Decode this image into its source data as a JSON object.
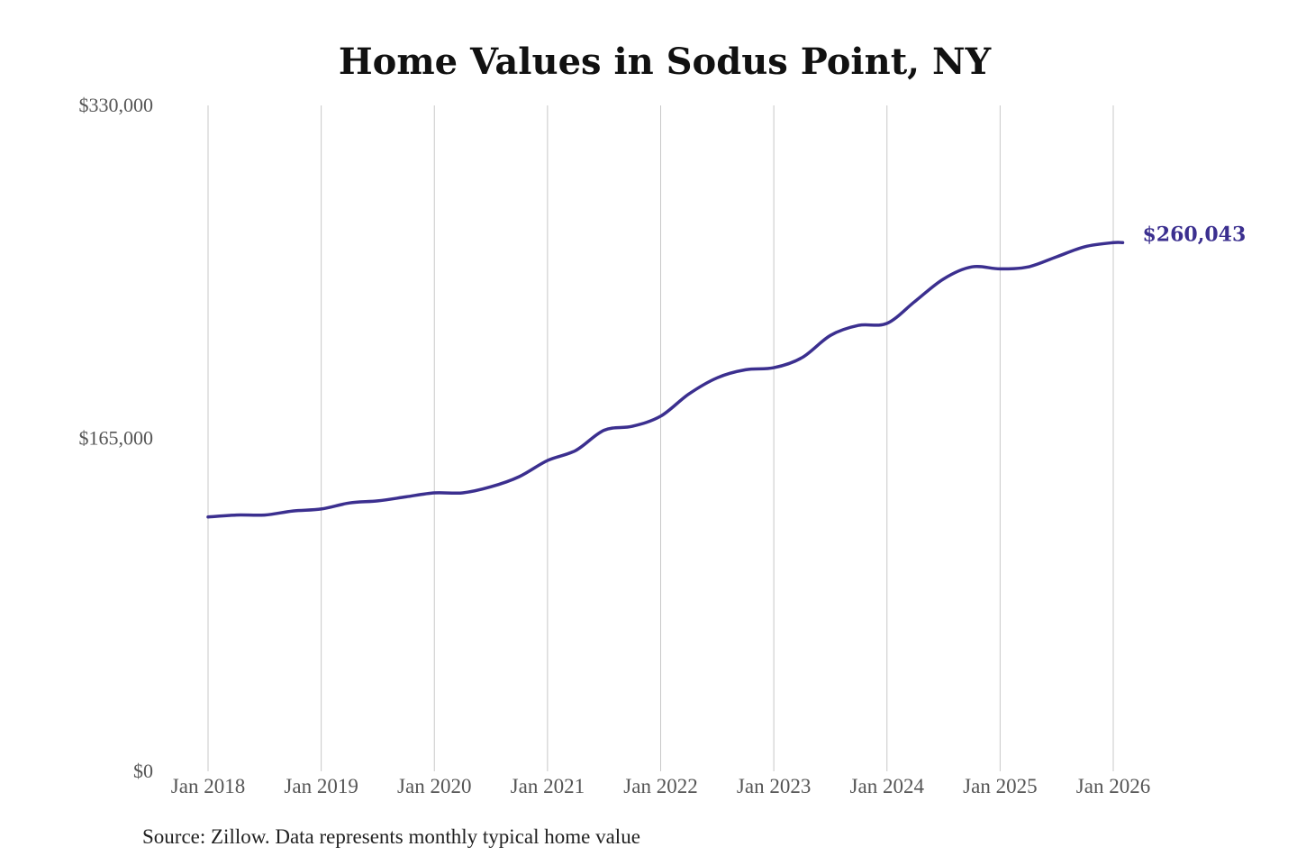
{
  "chart_data": {
    "type": "line",
    "title": "Home Values in Sodus Point, NY",
    "xlabel": "",
    "ylabel": "",
    "ylim": [
      0,
      330000
    ],
    "y_ticks": [
      0,
      165000,
      330000
    ],
    "y_tick_labels": [
      "$0",
      "$165,000",
      "$330,000"
    ],
    "x_tick_labels": [
      "Jan 2018",
      "Jan 2019",
      "Jan 2020",
      "Jan 2021",
      "Jan 2022",
      "Jan 2023",
      "Jan 2024",
      "Jan 2025",
      "Jan 2026"
    ],
    "x_range": [
      "2018-01",
      "2026-01"
    ],
    "grid": "vertical",
    "line_color": "#3b2f8f",
    "end_label": "$260,043",
    "series": [
      {
        "x": [
          "2018-01",
          "2018-04",
          "2018-07",
          "2018-10",
          "2019-01",
          "2019-04",
          "2019-07",
          "2019-10",
          "2020-01",
          "2020-04",
          "2020-07",
          "2020-10",
          "2021-01",
          "2021-04",
          "2021-07",
          "2021-10",
          "2022-01",
          "2022-04",
          "2022-07",
          "2022-10",
          "2023-01",
          "2023-04",
          "2023-07",
          "2023-10",
          "2024-01",
          "2024-04",
          "2024-07",
          "2024-10",
          "2025-01",
          "2025-04",
          "2025-07",
          "2025-10",
          "2026-01",
          "2026-02"
        ],
        "y": [
          126000,
          127000,
          127000,
          129000,
          130000,
          133000,
          134000,
          136000,
          138000,
          138000,
          141000,
          146000,
          154000,
          159000,
          169000,
          171000,
          176000,
          187000,
          195000,
          199000,
          200000,
          205000,
          216000,
          221000,
          222000,
          233000,
          244000,
          250000,
          249000,
          250000,
          255000,
          260000,
          262000,
          262000
        ]
      }
    ]
  },
  "source": "Source: Zillow. Data represents monthly typical home value"
}
